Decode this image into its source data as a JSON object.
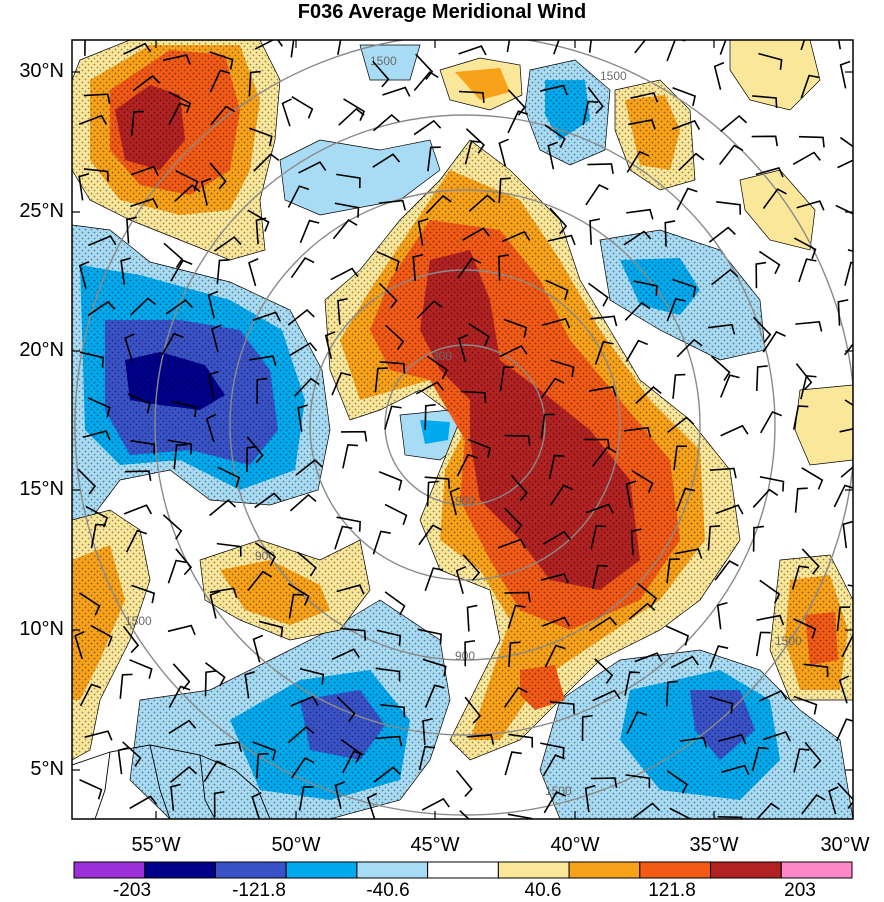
{
  "title": "F036 Average Meridional Wind",
  "lat_labels": [
    "30°N",
    "25°N",
    "20°N",
    "15°N",
    "10°N",
    "5°N"
  ],
  "lon_labels": [
    "55°W",
    "50°W",
    "45°W",
    "40°W",
    "35°W",
    "30°W"
  ],
  "colorbar": {
    "labels": [
      "-203",
      "-121.8",
      "-40.6",
      "40.6",
      "121.8",
      "203"
    ],
    "colors": [
      "#9b30d8",
      "#00008b",
      "#3a52c8",
      "#00aaee",
      "#a8dcf5",
      "#ffffff",
      "#fbe79a",
      "#f8a21a",
      "#f25a16",
      "#b22222",
      "#ff88c8"
    ]
  },
  "range_ring_labels": [
    "300",
    "900",
    "900",
    "900",
    "1500",
    "1500",
    "1500",
    "1500",
    "1500"
  ],
  "colors": {
    "neg_light": "#a8dcf5",
    "neg_mid": "#00aaee",
    "neg_dark": "#3a52c8",
    "neg_darkest": "#00008b",
    "pos_light": "#fbe79a",
    "pos_mid": "#f8a21a",
    "pos_strong": "#f25a16",
    "pos_darkest": "#b22222",
    "ring": "#8a8a8a"
  }
}
